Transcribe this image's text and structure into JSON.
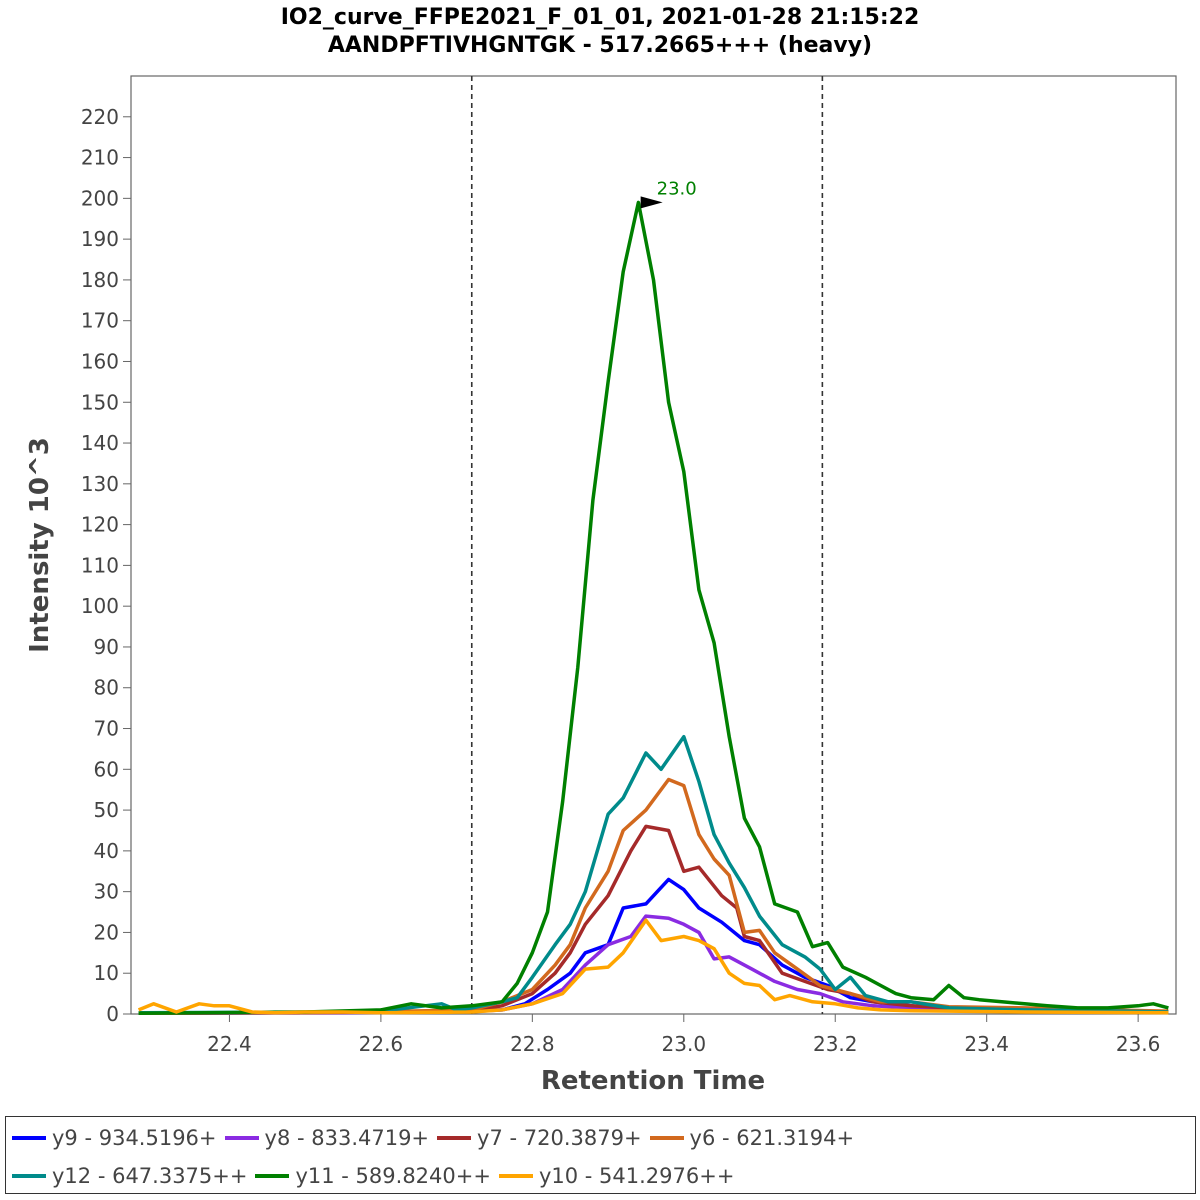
{
  "chart_data": {
    "type": "line",
    "title": "IO2_curve_FFPE2021_F_01_01, 2021-01-28 21:15:22",
    "subtitle": "AANDPFTIVHGNTGK - 517.2665+++ (heavy)",
    "xlabel": "Retention Time",
    "ylabel": "Intensity 10^3",
    "xlim": [
      22.27,
      23.65
    ],
    "ylim": [
      0,
      230
    ],
    "x_ticks": [
      "22.4",
      "22.6",
      "22.8",
      "23.0",
      "23.2",
      "23.4",
      "23.6"
    ],
    "y_ticks": [
      "0",
      "10",
      "20",
      "30",
      "40",
      "50",
      "60",
      "70",
      "80",
      "90",
      "100",
      "110",
      "120",
      "130",
      "140",
      "150",
      "160",
      "170",
      "180",
      "190",
      "200",
      "210",
      "220"
    ],
    "grid": false,
    "legend_position": "bottom",
    "boundaries": [
      22.72,
      23.183
    ],
    "peak_annotation": {
      "label": "23.0",
      "x": 22.98,
      "y": 199,
      "color": "#008000"
    },
    "series": [
      {
        "name": "y9 - 934.5196+",
        "color": "#0000ff",
        "x": [
          22.28,
          22.5,
          22.6,
          22.72,
          22.76,
          22.79,
          22.82,
          22.85,
          22.87,
          22.9,
          22.92,
          22.95,
          22.98,
          23.0,
          23.02,
          23.05,
          23.08,
          23.1,
          23.13,
          23.16,
          23.19,
          23.22,
          23.25,
          23.3,
          23.35,
          23.45,
          23.55,
          23.64
        ],
        "y": [
          0.2,
          0.3,
          0.5,
          0.8,
          1,
          2.5,
          6,
          10,
          15,
          17,
          26,
          27,
          33,
          30.5,
          26,
          22.5,
          18,
          17,
          12,
          9,
          7,
          4,
          3,
          2,
          1,
          0.7,
          0.5,
          0.4
        ]
      },
      {
        "name": "y8 - 833.4719+",
        "color": "#8a2be2",
        "x": [
          22.28,
          22.5,
          22.6,
          22.72,
          22.76,
          22.8,
          22.84,
          22.87,
          22.9,
          22.93,
          22.95,
          22.98,
          23.0,
          23.02,
          23.04,
          23.06,
          23.09,
          23.12,
          23.15,
          23.18,
          23.21,
          23.25,
          23.3,
          23.4,
          23.5,
          23.64
        ],
        "y": [
          0.2,
          0.3,
          0.4,
          0.6,
          1,
          2.5,
          6,
          12,
          17,
          19,
          24,
          23.5,
          22,
          20,
          13.5,
          14,
          11,
          8,
          6,
          5,
          3,
          2,
          1.5,
          1,
          0.7,
          0.5
        ]
      },
      {
        "name": "y7 - 720.3879+",
        "color": "#a52a2a",
        "x": [
          22.28,
          22.5,
          22.6,
          22.72,
          22.76,
          22.8,
          22.83,
          22.85,
          22.87,
          22.9,
          22.93,
          22.95,
          22.98,
          23.0,
          23.02,
          23.05,
          23.07,
          23.08,
          23.1,
          23.13,
          23.16,
          23.19,
          23.22,
          23.25,
          23.3,
          23.35,
          23.45,
          23.55,
          23.64
        ],
        "y": [
          0.2,
          0.3,
          0.5,
          0.8,
          2,
          5,
          10,
          15,
          22,
          29,
          40,
          46,
          45,
          35,
          36,
          29,
          26,
          19,
          18,
          10,
          8,
          6,
          5,
          3,
          2,
          1.5,
          1,
          0.7,
          0.5
        ]
      },
      {
        "name": "y6 - 621.3194+",
        "color": "#d2691e",
        "x": [
          22.28,
          22.5,
          22.6,
          22.72,
          22.76,
          22.8,
          22.83,
          22.85,
          22.87,
          22.9,
          22.92,
          22.95,
          22.98,
          23.0,
          23.02,
          23.04,
          23.06,
          23.08,
          23.1,
          23.12,
          23.15,
          23.18,
          23.22,
          23.26,
          23.3,
          23.35,
          23.45,
          23.55,
          23.64
        ],
        "y": [
          0.2,
          0.4,
          0.6,
          1,
          3,
          6,
          12,
          17,
          26,
          35,
          45,
          50,
          57.5,
          56,
          44,
          38,
          34,
          20,
          20.5,
          15,
          11,
          7,
          5,
          3,
          3,
          1.8,
          1.5,
          1,
          0.7
        ]
      },
      {
        "name": "y12 - 647.3375++",
        "color": "#008b8b",
        "x": [
          22.28,
          22.5,
          22.6,
          22.68,
          22.7,
          22.72,
          22.76,
          22.78,
          22.8,
          22.83,
          22.85,
          22.87,
          22.9,
          22.92,
          22.95,
          22.97,
          23.0,
          23.02,
          23.04,
          23.06,
          23.08,
          23.1,
          23.13,
          23.16,
          23.18,
          23.2,
          23.22,
          23.24,
          23.27,
          23.3,
          23.35,
          23.45,
          23.55,
          23.64
        ],
        "y": [
          0.3,
          0.5,
          0.7,
          2.5,
          1,
          1.5,
          3,
          4,
          9,
          17,
          22,
          30,
          49,
          53,
          64,
          60,
          68,
          57,
          44,
          37,
          31,
          24,
          17,
          14,
          11,
          6,
          9,
          4.5,
          3,
          3,
          1.5,
          1,
          0.8,
          0.5
        ]
      },
      {
        "name": "y11 - 589.8240++",
        "color": "#008000",
        "x": [
          22.28,
          22.5,
          22.6,
          22.64,
          22.68,
          22.72,
          22.76,
          22.78,
          22.8,
          22.82,
          22.84,
          22.86,
          22.88,
          22.9,
          22.92,
          22.94,
          22.96,
          22.98,
          23.0,
          23.02,
          23.04,
          23.06,
          23.08,
          23.1,
          23.12,
          23.15,
          23.17,
          23.19,
          23.21,
          23.24,
          23.26,
          23.28,
          23.3,
          23.33,
          23.35,
          23.37,
          23.39,
          23.42,
          23.45,
          23.48,
          23.52,
          23.56,
          23.6,
          23.62,
          23.64
        ],
        "y": [
          0.2,
          0.5,
          1,
          2.5,
          1.5,
          2,
          3,
          7.5,
          15,
          25,
          52,
          85,
          126,
          155,
          182,
          199,
          180,
          150,
          133,
          104,
          91,
          68,
          48,
          41,
          27,
          25,
          16.5,
          17.5,
          11.5,
          9,
          7,
          5,
          4,
          3.5,
          7,
          4,
          3.5,
          3,
          2.5,
          2,
          1.5,
          1.5,
          2,
          2.5,
          1.5
        ]
      },
      {
        "name": "y10 - 541.2976++",
        "color": "#ffa500",
        "x": [
          22.28,
          22.3,
          22.33,
          22.36,
          22.38,
          22.4,
          22.43,
          22.46,
          22.5,
          22.55,
          22.6,
          22.72,
          22.76,
          22.8,
          22.84,
          22.87,
          22.9,
          22.92,
          22.95,
          22.97,
          23.0,
          23.02,
          23.04,
          23.06,
          23.08,
          23.1,
          23.12,
          23.14,
          23.17,
          23.2,
          23.23,
          23.26,
          23.3,
          23.35,
          23.45,
          23.55,
          23.64
        ],
        "y": [
          1,
          2.5,
          0.5,
          2.5,
          2,
          2,
          0.5,
          0.3,
          0.5,
          0.5,
          0.3,
          0.5,
          1,
          2.5,
          5,
          11,
          11.5,
          15,
          23,
          18,
          19,
          18,
          16,
          10,
          7.5,
          7,
          3.5,
          4.5,
          3,
          2.5,
          1.5,
          1,
          0.8,
          0.7,
          0.5,
          0.4,
          0.3
        ]
      }
    ]
  }
}
